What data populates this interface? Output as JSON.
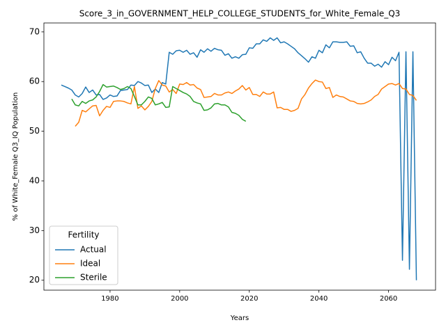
{
  "chart_data": {
    "type": "line",
    "title": "Score_3_in_GOVERNMENT_HELP_COLLEGE_STUDENTS_for_White_Female_Q3",
    "xlabel": "Years",
    "ylabel": "% of White_Female Q3_IQ Population",
    "legend_title": "Fertility",
    "legend": "lower left",
    "x": [
      1966,
      1967,
      1968,
      1969,
      1970,
      1971,
      1972,
      1973,
      1974,
      1975,
      1976,
      1977,
      1978,
      1979,
      1980,
      1981,
      1982,
      1983,
      1984,
      1985,
      1986,
      1987,
      1988,
      1989,
      1990,
      1991,
      1992,
      1993,
      1994,
      1995,
      1996,
      1997,
      1998,
      1999,
      2000,
      2001,
      2002,
      2003,
      2004,
      2005,
      2006,
      2007,
      2008,
      2009,
      2010,
      2011,
      2012,
      2013,
      2014,
      2015,
      2016,
      2017,
      2018,
      2019,
      2020,
      2021,
      2022,
      2023,
      2024,
      2025,
      2026,
      2027,
      2028,
      2029,
      2030,
      2031,
      2032,
      2033,
      2034,
      2035,
      2036,
      2037,
      2038,
      2039,
      2040,
      2041,
      2042,
      2043,
      2044,
      2045,
      2046,
      2047,
      2048,
      2049,
      2050,
      2051,
      2052,
      2053,
      2054,
      2055,
      2056,
      2057,
      2058,
      2059,
      2060,
      2061,
      2062,
      2063,
      2064,
      2065,
      2066,
      2067,
      2068
    ],
    "series": [
      {
        "name": "Actual",
        "color": "#1f77b4",
        "values": [
          59.3,
          59.0,
          58.7,
          58.3,
          57.3,
          56.9,
          57.6,
          58.9,
          57.8,
          58.3,
          57.3,
          57.4,
          56.4,
          56.7,
          57.3,
          57.0,
          57.1,
          58.2,
          58.3,
          58.4,
          59.3,
          59.2,
          60.0,
          59.7,
          59.2,
          59.3,
          57.8,
          58.5,
          57.8,
          59.8,
          59.5,
          65.9,
          65.5,
          66.2,
          66.3,
          65.9,
          66.3,
          65.5,
          65.8,
          64.9,
          66.4,
          65.9,
          66.6,
          66.1,
          66.7,
          66.4,
          66.3,
          65.3,
          65.6,
          64.7,
          65.0,
          64.7,
          65.4,
          65.5,
          66.8,
          66.7,
          67.6,
          67.6,
          68.4,
          68.1,
          68.8,
          68.3,
          68.8,
          67.8,
          68.0,
          67.6,
          67.1,
          66.6,
          65.8,
          65.2,
          64.6,
          63.9,
          65.0,
          64.7,
          66.3,
          65.8,
          67.4,
          66.8,
          68.0,
          68.0,
          67.9,
          67.9,
          68.0,
          67.1,
          67.2,
          65.8,
          66.0,
          64.7,
          63.7,
          63.7,
          63.1,
          63.5,
          62.9,
          64.0,
          63.4,
          64.9,
          64.2,
          65.9,
          24.0,
          66.0,
          22.2,
          66.0,
          20.0
        ]
      },
      {
        "name": "Ideal",
        "color": "#ff7f0e",
        "values": [
          null,
          null,
          null,
          null,
          51.0,
          51.8,
          54.2,
          53.9,
          54.5,
          55.1,
          55.2,
          53.1,
          54.2,
          55.0,
          54.8,
          56.0,
          56.1,
          56.1,
          56.0,
          55.7,
          55.5,
          59.0,
          54.6,
          55.1,
          54.3,
          55.0,
          56.0,
          58.6,
          60.2,
          59.3,
          59.1,
          57.9,
          58.4,
          57.6,
          59.5,
          59.4,
          59.8,
          59.3,
          59.4,
          58.7,
          58.4,
          56.8,
          56.9,
          57.0,
          57.6,
          57.3,
          57.3,
          57.7,
          57.9,
          57.6,
          58.1,
          58.5,
          59.2,
          58.3,
          58.8,
          57.4,
          57.4,
          57.0,
          57.9,
          57.5,
          57.5,
          57.9,
          54.7,
          54.8,
          54.4,
          54.4,
          54.0,
          54.2,
          54.6,
          56.5,
          57.4,
          58.7,
          59.6,
          60.3,
          60.0,
          59.9,
          58.6,
          58.8,
          56.8,
          57.3,
          57.0,
          56.9,
          56.5,
          56.1,
          56.0,
          55.6,
          55.5,
          55.6,
          55.9,
          56.3,
          57.0,
          57.4,
          58.5,
          59.0,
          59.5,
          59.6,
          59.3,
          59.6,
          58.6,
          58.5,
          57.4,
          57.2,
          56.2
        ]
      },
      {
        "name": "Sterile",
        "color": "#2ca02c",
        "values": [
          null,
          null,
          null,
          56.5,
          55.3,
          55.1,
          56.0,
          55.6,
          56.1,
          56.3,
          56.9,
          58.0,
          59.4,
          58.9,
          59.0,
          59.1,
          58.8,
          58.4,
          58.6,
          59.0,
          58.6,
          57.0,
          55.3,
          55.3,
          56.0,
          56.9,
          56.6,
          55.3,
          55.5,
          55.8,
          54.8,
          54.9,
          59.0,
          58.6,
          58.2,
          57.8,
          57.5,
          57.0,
          56.0,
          55.7,
          55.5,
          54.2,
          54.3,
          54.7,
          55.5,
          55.6,
          55.3,
          55.3,
          54.9,
          53.8,
          53.6,
          53.2,
          52.4,
          52.0,
          null,
          null,
          null,
          null,
          null,
          null,
          null,
          null,
          null,
          null,
          null,
          null,
          null,
          null,
          null,
          null,
          null,
          null,
          null,
          null,
          null,
          null,
          null,
          null,
          null,
          null,
          null,
          null,
          null,
          null,
          null,
          null,
          null,
          null,
          null,
          null,
          null,
          null,
          null,
          null,
          null,
          null,
          null,
          null,
          null,
          null,
          null,
          null,
          null
        ]
      }
    ],
    "xlim": [
      1961,
      2073.5
    ],
    "ylim": [
      18,
      71.8
    ],
    "xticks": [
      1980,
      2000,
      2020,
      2040,
      2060
    ],
    "yticks": [
      20,
      30,
      40,
      50,
      60,
      70
    ]
  }
}
